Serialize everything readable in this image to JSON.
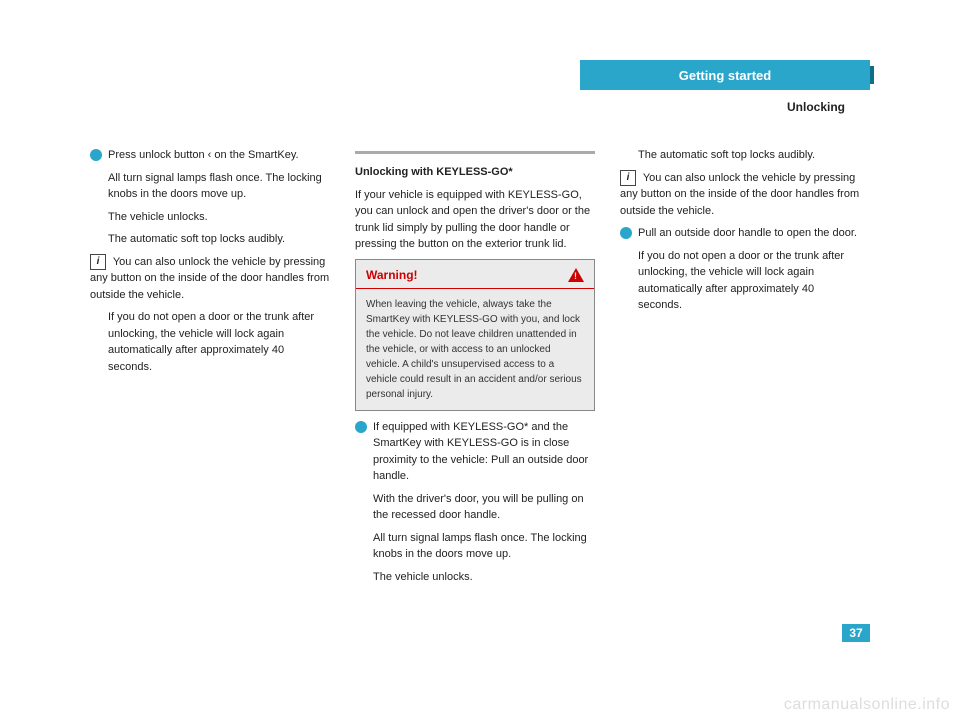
{
  "header": {
    "title": "Getting started",
    "subtitle": "Unlocking"
  },
  "page_number": "37",
  "watermark": "carmanualsonline.info",
  "col1": {
    "step1": "Press unlock button ‹ on the SmartKey.",
    "p1": "All turn signal lamps flash once. The locking knobs in the doors move up.",
    "p2": "The vehicle unlocks.",
    "p3": "The automatic soft top locks audibly.",
    "note_lead": "You can also unlock the vehicle by pressing any button on the inside of the door handles from outside the vehicle.",
    "p4": "If you do not open a door or the trunk after unlocking, the vehicle will lock again automatically after approximately 40 seconds."
  },
  "col2": {
    "section_title": "Unlocking with KEYLESS-GO*",
    "intro": "If your vehicle is equipped with KEYLESS-GO, you can unlock and open the driver's door or the trunk lid simply by pulling the door handle or pressing the button on the exterior trunk lid.",
    "warning_title": "Warning!",
    "warning_body": "When leaving the vehicle, always take the SmartKey with KEYLESS-GO with you, and lock the vehicle. Do not leave children unattended in the vehicle, or with access to an unlocked vehicle. A child's unsupervised access to a vehicle could result in an accident and/or serious personal injury.",
    "step2": "If equipped with KEYLESS-GO* and the SmartKey with KEYLESS-GO is in close proximity to the vehicle: Pull an outside door handle.",
    "p5": "With the driver's door, you will be pulling on the recessed door handle.",
    "p6": "All turn signal lamps flash once. The locking knobs in the doors move up.",
    "p7": "The vehicle unlocks."
  },
  "col3": {
    "p8": "The automatic soft top locks audibly.",
    "note_lead2": "You can also unlock the vehicle by pressing any button on the inside of the door handles from outside the vehicle.",
    "step3": "Pull an outside door handle to open the door.",
    "p9": "If you do not open a door or the trunk after unlocking, the vehicle will lock again automatically after approximately 40 seconds."
  },
  "colors": {
    "accent": "#2ba6cb",
    "warning_red": "#c00",
    "warning_bg": "#ebebeb",
    "text": "#222"
  }
}
